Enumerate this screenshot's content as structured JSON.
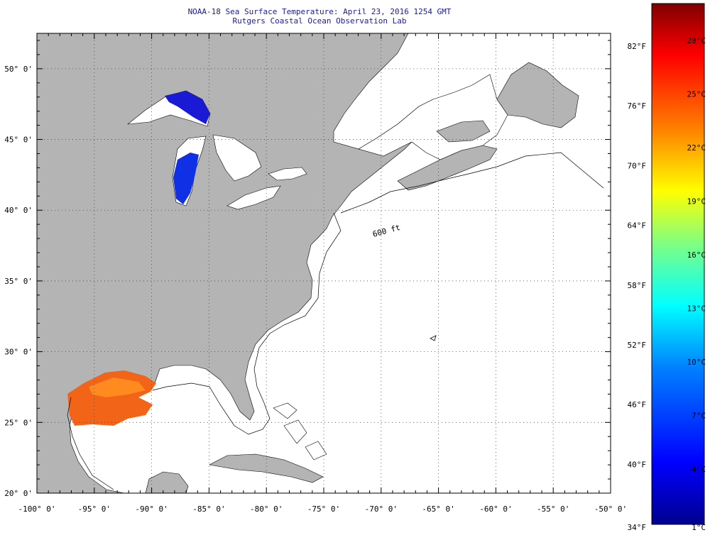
{
  "header": {
    "title": "NOAA-18 Sea Surface Temperature:  April 23, 2016 1254 GMT",
    "subtitle": "Rutgers Coastal Ocean Observation Lab"
  },
  "map": {
    "lon_range": [
      -100,
      -50
    ],
    "lat_range": [
      20,
      52.5
    ],
    "lon_ticks": [
      -100,
      -95,
      -90,
      -85,
      -80,
      -75,
      -70,
      -65,
      -60,
      -55,
      -50
    ],
    "lat_ticks": [
      20,
      25,
      30,
      35,
      40,
      45,
      50
    ],
    "lon_labels": [
      "-100° 0'",
      "-95° 0'",
      "-90° 0'",
      "-85° 0'",
      "-80° 0'",
      "-75° 0'",
      "-70° 0'",
      "-65° 0'",
      "-60° 0'",
      "-55° 0'",
      "-50° 0'"
    ],
    "lat_labels": [
      "20° 0'",
      "25° 0'",
      "30° 0'",
      "35° 0'",
      "40° 0'",
      "45° 0'",
      "50° 0'"
    ],
    "land_color": "#b4b4b4",
    "no_data_color": "#ffffff",
    "contour_label": "600 ft",
    "grid": "dotted"
  },
  "colorbar": {
    "fahrenheit_labels": [
      "82°F",
      "76°F",
      "70°F",
      "64°F",
      "58°F",
      "52°F",
      "46°F",
      "40°F",
      "34°F"
    ],
    "celsius_labels": [
      "28°C",
      "25°C",
      "22°C",
      "19°C",
      "16°C",
      "13°C",
      "10°C",
      "7°C",
      "4°C",
      "1°C"
    ],
    "colors": [
      "#00008f",
      "#0000ff",
      "#0080ff",
      "#00ffff",
      "#80ff80",
      "#ffff00",
      "#ff8000",
      "#ff0000",
      "#800000"
    ]
  }
}
